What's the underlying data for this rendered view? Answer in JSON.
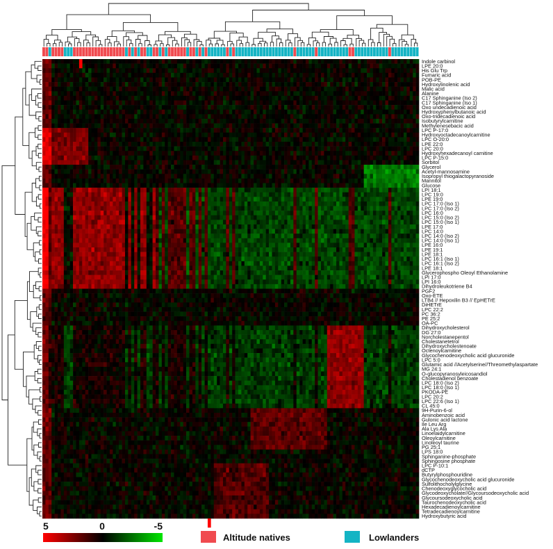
{
  "chart_data": {
    "type": "heatmap",
    "title": "",
    "xlabel": "",
    "ylabel": "",
    "group_legend": [
      {
        "name": "Altitude natives",
        "color": "#f04a4f"
      },
      {
        "name": "Lowlanders",
        "color": "#14b4c4"
      }
    ],
    "color_scale": {
      "labels": [
        "5",
        "0",
        "-5"
      ],
      "values": [
        5,
        0,
        -5
      ],
      "colors": [
        "#ff0000",
        "#000000",
        "#00e600"
      ]
    },
    "column_groups": [
      "A",
      "A",
      "L",
      "A",
      "A",
      "A",
      "A",
      "L",
      "L",
      "L",
      "A",
      "A",
      "A",
      "A",
      "A",
      "A",
      "A",
      "A",
      "A",
      "A",
      "A",
      "A",
      "A",
      "A",
      "A",
      "A",
      "A",
      "L",
      "A",
      "L",
      "A",
      "L",
      "A",
      "A",
      "L",
      "L",
      "A",
      "A",
      "L",
      "A",
      "L",
      "A",
      "A",
      "A",
      "A",
      "A",
      "A",
      "L",
      "A",
      "A",
      "L",
      "A",
      "L",
      "A",
      "L",
      "L",
      "L",
      "L",
      "L",
      "L",
      "A",
      "L",
      "A",
      "L",
      "L",
      "L",
      "L",
      "L",
      "L",
      "L",
      "L",
      "L",
      "L",
      "L",
      "L",
      "L",
      "L",
      "L",
      "L",
      "L",
      "L",
      "L",
      "A",
      "L",
      "L",
      "L",
      "L",
      "L",
      "L",
      "A",
      "L",
      "L",
      "L",
      "L",
      "L",
      "L",
      "L",
      "L",
      "L",
      "L",
      "A",
      "A",
      "L",
      "L",
      "L",
      "L",
      "L",
      "L",
      "L",
      "L",
      "L",
      "L",
      "L",
      "A",
      "L",
      "L",
      "L",
      "L",
      "L",
      "L",
      "L",
      "L",
      "L"
    ],
    "rows": [
      "Indole carbinol",
      "LPE 20:0",
      "His Glu Trp",
      "Fumaric acid",
      "POB-PE",
      "Hydroxylinolenic acid",
      "Malic acid",
      "Alanine",
      "C17 Sphinganine (Iso 2)",
      "C17 Sphinganine (Iso 1)",
      "Oxo undecadienoic acid",
      "Hydroxyphenylbutanoic acid",
      "Oxo-tridecadienoic acid",
      "Isobutyrylcarnitine",
      "Methylenesebacic acid",
      "LPC P-17:0",
      "Hydroxyoctadecanoylcarnitine",
      "LPC O-20:0",
      "LPE 22:0",
      "LPC 20:0",
      "Hydroxyhexadecanoyl carnitine",
      "LPC P-15:0",
      "Sorbitol",
      "Glycerol",
      "Acetyl-mannosamine",
      "Isopropyl thiogalactopyranoside",
      "Mannitol",
      "Glucose",
      "LPI 18:1",
      "LPC 19:0",
      "LPE 19:0",
      "LPC 17:0 (Iso 1)",
      "LPC 17:0 (Iso 2)",
      "LPC 16:0",
      "LPC 15:0 (Iso 2)",
      "LPC 15:0 (Iso 1)",
      "LPE 17:0",
      "LPC 14:0",
      "LPC 14:0 (Iso 2)",
      "LPC 14:0 (Iso 1)",
      "LPE 16:0",
      "LPE 19:1",
      "LPE 18:1",
      "LPC 16:1 (Iso 1)",
      "LPC 16:1 (Iso 2)",
      "LPE 18:1",
      "Glycerophospho Oleoyl Ethanolamine",
      "LPI 17:0",
      "LPI 16:0",
      "Dihydroleukotriene B4",
      "PGF2",
      "Oxo-ETE",
      "LTB4 // Hepoxilin B3 // EpHETrE",
      "DiHETrE",
      "LPC 22:2",
      "PC 36:2",
      "PE 25:2",
      "OA-PC",
      "Dihydroxycholesterol",
      "DG 27:0",
      "Norcholestanepentol",
      "Cholestanetetrol",
      "Dihydroxycholestenoate",
      "Octenoylcarnitine",
      "Glycochenodeoxycholic acid glucuronide",
      "LPC 5:0",
      "Glutamic acid //Acetylserine//Threomethylaspartate",
      "MG 24:1",
      "O-glucopyranosyleicosandiol",
      "Cholestadienol benzoate",
      "LPC 18:0 (Iso 2)",
      "LPC 18:0 (Iso 1)",
      "PKODA-PE",
      "LPC 20:2",
      "LPC 22:6 (Iso 1)",
      "CL 45:0",
      "9H-Purin-6-ol",
      "Aminobenzoic acid",
      "Gulonic acid lactone",
      "Ile Leu Arg",
      "Ala Lys Ala",
      "Linoelaidylcarnitine",
      "Oleoylcarnitine",
      "Linoleoyl taurine",
      "PG 25:1",
      "LPS 18:0",
      "Sphinganine-phosphate",
      "Sphingosine phosphate",
      "LPC P-10:1",
      "dCTP",
      "Butyrylphosphouridine",
      "Glycochenodeoxycholic acid glucuronide",
      "Sulfolithocholylglycine",
      "Chenodeoxyglycocholic acid",
      "Glycodeoxycholate//Glycoursodeoxycholic acid",
      "Glycoursodeoxycholic acid",
      "Taurochenodeoxycholic acid",
      "Hexadecadienoylcarnitine",
      "Tetradecadienoylcarnitine",
      "Hydroxybutyric acid"
    ],
    "values_note": ""
  }
}
